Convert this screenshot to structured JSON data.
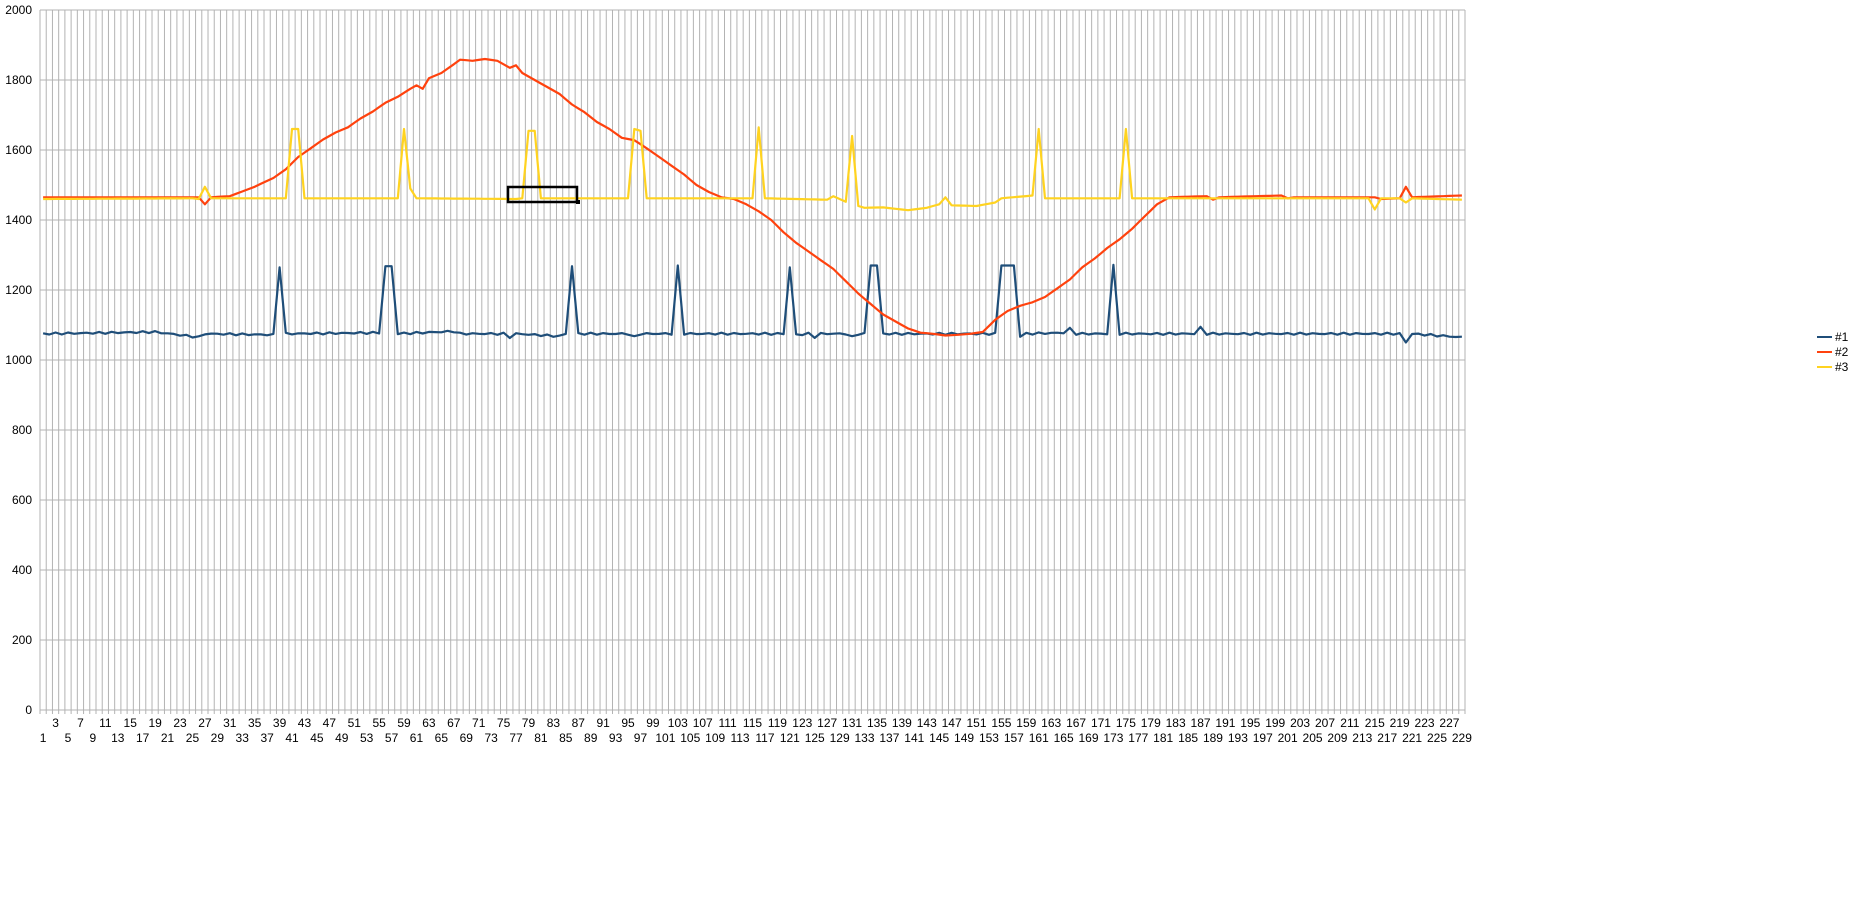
{
  "chart_data": {
    "type": "line",
    "title": "",
    "xlabel": "",
    "ylabel": "",
    "x_range": [
      1,
      229
    ],
    "x_tick_step": 2,
    "ylim": [
      0,
      2000
    ],
    "y_ticks": [
      0,
      200,
      400,
      600,
      800,
      1000,
      1200,
      1400,
      1600,
      1800,
      2000
    ],
    "grid": true,
    "legend_position": "right",
    "series": [
      {
        "name": "#1",
        "color": "#1f4e79",
        "baseline": 1075,
        "points": [
          [
            1,
            1075
          ],
          [
            19,
            1080
          ],
          [
            26,
            1065
          ],
          [
            27,
            1075
          ],
          [
            38,
            1072
          ],
          [
            39,
            1265
          ],
          [
            40,
            1075
          ],
          [
            55,
            1078
          ],
          [
            56,
            1268
          ],
          [
            57,
            1268
          ],
          [
            58,
            1075
          ],
          [
            67,
            1082
          ],
          [
            68,
            1075
          ],
          [
            75,
            1075
          ],
          [
            76,
            1063
          ],
          [
            77,
            1075
          ],
          [
            84,
            1068
          ],
          [
            85,
            1075
          ],
          [
            86,
            1268
          ],
          [
            87,
            1075
          ],
          [
            95,
            1075
          ],
          [
            96,
            1065
          ],
          [
            97,
            1075
          ],
          [
            102,
            1075
          ],
          [
            103,
            1270
          ],
          [
            104,
            1075
          ],
          [
            120,
            1075
          ],
          [
            121,
            1265
          ],
          [
            122,
            1072
          ],
          [
            124,
            1075
          ],
          [
            125,
            1066
          ],
          [
            126,
            1075
          ],
          [
            130,
            1075
          ],
          [
            131,
            1065
          ],
          [
            132,
            1075
          ],
          [
            133,
            1075
          ],
          [
            134,
            1270
          ],
          [
            135,
            1270
          ],
          [
            136,
            1075
          ],
          [
            154,
            1075
          ],
          [
            155,
            1270
          ],
          [
            157,
            1270
          ],
          [
            158,
            1068
          ],
          [
            159,
            1075
          ],
          [
            165,
            1078
          ],
          [
            166,
            1092
          ],
          [
            167,
            1075
          ],
          [
            172,
            1075
          ],
          [
            173,
            1272
          ],
          [
            174,
            1075
          ],
          [
            186,
            1075
          ],
          [
            187,
            1095
          ],
          [
            188,
            1075
          ],
          [
            219,
            1075
          ],
          [
            220,
            1050
          ],
          [
            221,
            1075
          ],
          [
            229,
            1065
          ]
        ]
      },
      {
        "name": "#2",
        "color": "#ff420e",
        "points": [
          [
            1,
            1465
          ],
          [
            26,
            1465
          ],
          [
            27,
            1445
          ],
          [
            28,
            1465
          ],
          [
            31,
            1468
          ],
          [
            35,
            1495
          ],
          [
            38,
            1520
          ],
          [
            40,
            1545
          ],
          [
            42,
            1580
          ],
          [
            44,
            1605
          ],
          [
            46,
            1630
          ],
          [
            48,
            1650
          ],
          [
            50,
            1665
          ],
          [
            52,
            1690
          ],
          [
            54,
            1710
          ],
          [
            56,
            1735
          ],
          [
            58,
            1752
          ],
          [
            60,
            1775
          ],
          [
            61,
            1785
          ],
          [
            62,
            1775
          ],
          [
            63,
            1805
          ],
          [
            65,
            1820
          ],
          [
            67,
            1845
          ],
          [
            68,
            1858
          ],
          [
            70,
            1855
          ],
          [
            72,
            1860
          ],
          [
            74,
            1855
          ],
          [
            76,
            1835
          ],
          [
            77,
            1842
          ],
          [
            78,
            1820
          ],
          [
            80,
            1800
          ],
          [
            82,
            1780
          ],
          [
            84,
            1760
          ],
          [
            86,
            1730
          ],
          [
            88,
            1708
          ],
          [
            90,
            1680
          ],
          [
            92,
            1660
          ],
          [
            94,
            1635
          ],
          [
            96,
            1628
          ],
          [
            98,
            1605
          ],
          [
            100,
            1580
          ],
          [
            102,
            1555
          ],
          [
            104,
            1530
          ],
          [
            106,
            1500
          ],
          [
            108,
            1480
          ],
          [
            110,
            1465
          ],
          [
            112,
            1460
          ],
          [
            114,
            1445
          ],
          [
            116,
            1425
          ],
          [
            118,
            1400
          ],
          [
            120,
            1365
          ],
          [
            122,
            1335
          ],
          [
            124,
            1310
          ],
          [
            126,
            1285
          ],
          [
            128,
            1260
          ],
          [
            130,
            1225
          ],
          [
            132,
            1190
          ],
          [
            134,
            1160
          ],
          [
            136,
            1130
          ],
          [
            138,
            1110
          ],
          [
            140,
            1090
          ],
          [
            142,
            1078
          ],
          [
            144,
            1075
          ],
          [
            146,
            1070
          ],
          [
            148,
            1072
          ],
          [
            150,
            1075
          ],
          [
            152,
            1080
          ],
          [
            154,
            1115
          ],
          [
            156,
            1140
          ],
          [
            158,
            1155
          ],
          [
            160,
            1165
          ],
          [
            162,
            1180
          ],
          [
            164,
            1205
          ],
          [
            166,
            1230
          ],
          [
            168,
            1265
          ],
          [
            170,
            1290
          ],
          [
            172,
            1320
          ],
          [
            174,
            1345
          ],
          [
            176,
            1375
          ],
          [
            178,
            1410
          ],
          [
            180,
            1445
          ],
          [
            182,
            1465
          ],
          [
            188,
            1468
          ],
          [
            189,
            1458
          ],
          [
            190,
            1465
          ],
          [
            200,
            1470
          ],
          [
            201,
            1462
          ],
          [
            202,
            1465
          ],
          [
            215,
            1465
          ],
          [
            216,
            1460
          ],
          [
            219,
            1462
          ],
          [
            220,
            1495
          ],
          [
            221,
            1465
          ],
          [
            229,
            1470
          ]
        ]
      },
      {
        "name": "#3",
        "color": "#ffd320",
        "points": [
          [
            1,
            1460
          ],
          [
            25,
            1462
          ],
          [
            26,
            1460
          ],
          [
            27,
            1495
          ],
          [
            28,
            1462
          ],
          [
            40,
            1462
          ],
          [
            41,
            1660
          ],
          [
            42,
            1660
          ],
          [
            43,
            1462
          ],
          [
            58,
            1462
          ],
          [
            59,
            1660
          ],
          [
            60,
            1490
          ],
          [
            61,
            1462
          ],
          [
            77,
            1460
          ],
          [
            78,
            1462
          ],
          [
            79,
            1655
          ],
          [
            80,
            1655
          ],
          [
            81,
            1462
          ],
          [
            95,
            1462
          ],
          [
            96,
            1660
          ],
          [
            97,
            1655
          ],
          [
            98,
            1462
          ],
          [
            115,
            1462
          ],
          [
            116,
            1665
          ],
          [
            117,
            1462
          ],
          [
            127,
            1458
          ],
          [
            128,
            1468
          ],
          [
            130,
            1452
          ],
          [
            131,
            1640
          ],
          [
            132,
            1440
          ],
          [
            133,
            1435
          ],
          [
            136,
            1436
          ],
          [
            140,
            1428
          ],
          [
            143,
            1435
          ],
          [
            145,
            1445
          ],
          [
            146,
            1465
          ],
          [
            147,
            1442
          ],
          [
            151,
            1440
          ],
          [
            154,
            1450
          ],
          [
            155,
            1462
          ],
          [
            160,
            1470
          ],
          [
            161,
            1660
          ],
          [
            162,
            1462
          ],
          [
            174,
            1462
          ],
          [
            175,
            1660
          ],
          [
            176,
            1462
          ],
          [
            210,
            1462
          ],
          [
            214,
            1462
          ],
          [
            215,
            1430
          ],
          [
            216,
            1462
          ],
          [
            219,
            1462
          ],
          [
            220,
            1450
          ],
          [
            221,
            1462
          ],
          [
            229,
            1458
          ]
        ]
      }
    ]
  }
}
